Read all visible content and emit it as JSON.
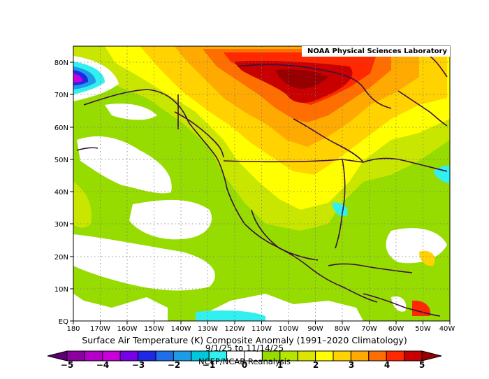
{
  "header": {
    "lab_name": "NOAA Physical Sciences Laboratory"
  },
  "map": {
    "lat_labels": [
      "80N",
      "70N",
      "60N",
      "50N",
      "40N",
      "30N",
      "20N",
      "10N",
      "EQ"
    ],
    "lon_labels": [
      "180",
      "170W",
      "160W",
      "150W",
      "140W",
      "130W",
      "120W",
      "110W",
      "100W",
      "90W",
      "80W",
      "70W",
      "60W",
      "50W",
      "40W"
    ],
    "extent": {
      "lon_min": -180,
      "lon_max": -40,
      "lat_min": 0,
      "lat_max": 85
    },
    "grid": "dotted"
  },
  "footer": {
    "title": "Surface Air Temperature (K) Composite Anomaly (1991–2020 Climatology)",
    "date_range": "9/1/25  to 11/14/25",
    "source": "NCEP/NCAR Reanalysis"
  },
  "colorbar": {
    "tick_labels": [
      "−5",
      "−4",
      "−3",
      "−2",
      "−1",
      "0",
      "1",
      "2",
      "3",
      "4",
      "5"
    ],
    "colors": [
      "#5a0072",
      "#8c00a0",
      "#b400c8",
      "#c800dc",
      "#7800e6",
      "#1e28e6",
      "#1f6fe8",
      "#1e9be6",
      "#00c8dc",
      "#32f0f0",
      "#ffffff",
      "#ffffff",
      "#96dc00",
      "#b4e600",
      "#dce600",
      "#ffff00",
      "#ffd200",
      "#ffaa00",
      "#ff6e00",
      "#ff2800",
      "#c80000",
      "#960000"
    ]
  }
}
